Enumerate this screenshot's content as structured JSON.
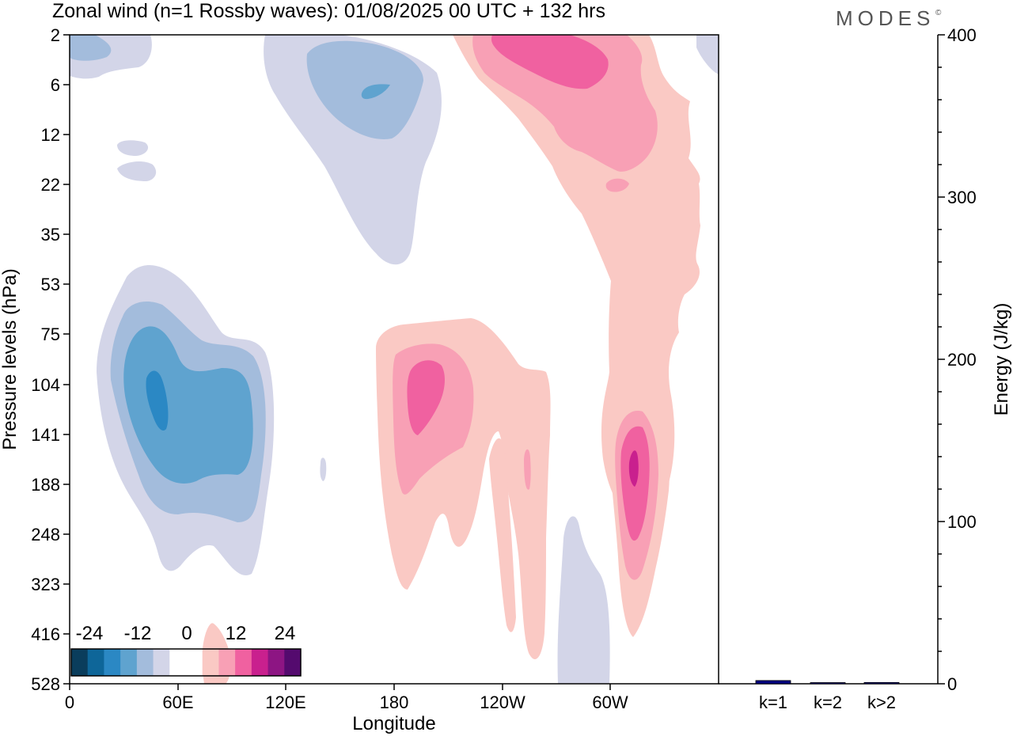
{
  "chart_data": [
    {
      "type": "heatmap",
      "title": "Zonal wind (n=1 Rossby waves):  01/08/2025  00 UTC  + 132 hrs",
      "brand": "MODES",
      "brand_mark": "©",
      "xlabel": "Longitude",
      "ylabel": "Pressure levels (hPa)",
      "x_ticks": [
        "0",
        "60E",
        "120E",
        "180",
        "120W",
        "60W"
      ],
      "x_tick_values": [
        0,
        60,
        120,
        180,
        240,
        300
      ],
      "xlim": [
        0,
        360
      ],
      "y_ticks": [
        "2",
        "6",
        "12",
        "22",
        "35",
        "53",
        "75",
        "104",
        "141",
        "188",
        "248",
        "323",
        "416",
        "528"
      ],
      "y_reversed": true,
      "colorbar": {
        "tick_labels": [
          "-24",
          "-12",
          "0",
          "12",
          "24"
        ],
        "colors": [
          "#0a3d5c",
          "#0e6699",
          "#2b88c4",
          "#5fa3cf",
          "#a3bcdc",
          "#d3d5e8",
          "#ffffff",
          "#ffffff",
          "#fac9c4",
          "#f8a0b5",
          "#f061a0",
          "#c9208e",
          "#8d1583",
          "#540a6e"
        ]
      },
      "contours": [
        {
          "name": "neg-upper-left",
          "level": -3,
          "color": "#d3d5e8"
        },
        {
          "name": "neg-upper-left-core",
          "level": -6,
          "color": "#a3bcdc"
        },
        {
          "name": "neg-stratosphere-120E",
          "level": -3,
          "color": "#d3d5e8"
        },
        {
          "name": "neg-stratosphere-120E-mid",
          "level": -6,
          "color": "#a3bcdc"
        },
        {
          "name": "neg-stratosphere-120E-core",
          "level": -9,
          "color": "#5fa3cf"
        },
        {
          "name": "neg-small-blob-1",
          "level": -3,
          "color": "#d3d5e8"
        },
        {
          "name": "neg-small-blob-2",
          "level": -3,
          "color": "#d3d5e8"
        },
        {
          "name": "neg-tropo-60E",
          "level": -3,
          "color": "#d3d5e8"
        },
        {
          "name": "neg-tropo-60E-mid",
          "level": -6,
          "color": "#a3bcdc"
        },
        {
          "name": "neg-tropo-60E-inner",
          "level": -9,
          "color": "#5fa3cf"
        },
        {
          "name": "neg-tropo-60E-core",
          "level": -12,
          "color": "#2b88c4"
        },
        {
          "name": "neg-tiny-150E",
          "level": -3,
          "color": "#d3d5e8"
        },
        {
          "name": "neg-lower-80W",
          "level": -3,
          "color": "#d3d5e8"
        },
        {
          "name": "neg-top-right",
          "level": -3,
          "color": "#d3d5e8"
        },
        {
          "name": "pos-strat-tongue",
          "level": 3,
          "color": "#fac9c4"
        },
        {
          "name": "pos-strat-mid",
          "level": 6,
          "color": "#f8a0b5"
        },
        {
          "name": "pos-strat-core",
          "level": 9,
          "color": "#f061a0"
        },
        {
          "name": "pos-small-blob",
          "level": 6,
          "color": "#f8a0b5"
        },
        {
          "name": "pos-tropo-180",
          "level": 3,
          "color": "#fac9c4"
        },
        {
          "name": "pos-tropo-180-mid",
          "level": 6,
          "color": "#f8a0b5"
        },
        {
          "name": "pos-tropo-180-core",
          "level": 9,
          "color": "#f061a0"
        },
        {
          "name": "pos-lower-130W",
          "level": 3,
          "color": "#fac9c4"
        },
        {
          "name": "pos-thin-130W",
          "level": 6,
          "color": "#f8a0b5"
        },
        {
          "name": "pos-tropo-60W",
          "level": 3,
          "color": "#fac9c4"
        },
        {
          "name": "pos-tropo-60W-mid",
          "level": 6,
          "color": "#f8a0b5"
        },
        {
          "name": "pos-tropo-60W-inner",
          "level": 9,
          "color": "#f061a0"
        },
        {
          "name": "pos-tropo-60W-core",
          "level": 12,
          "color": "#c9208e"
        },
        {
          "name": "pos-surface-80E",
          "level": 3,
          "color": "#fac9c4"
        }
      ]
    },
    {
      "type": "bar",
      "ylabel": "Energy (J/kg)",
      "ylim": [
        0,
        400
      ],
      "y_ticks": [
        0,
        100,
        200,
        300,
        400
      ],
      "categories": [
        "k=1",
        "k=2",
        "k>2"
      ],
      "values": [
        2,
        0.5,
        0.8
      ],
      "bar_color": "#000080"
    }
  ]
}
